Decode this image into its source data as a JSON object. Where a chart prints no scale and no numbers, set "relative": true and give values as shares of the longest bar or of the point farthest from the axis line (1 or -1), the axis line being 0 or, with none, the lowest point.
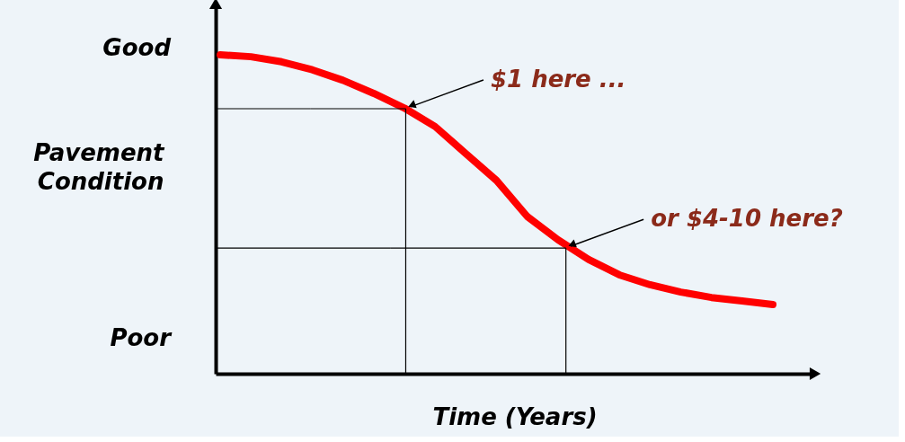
{
  "chart_data": {
    "type": "line",
    "relative": true,
    "xlabel": "Time (Years)",
    "ylabel": "Pavement Condition",
    "line_style": "solid",
    "categories": [
      null,
      null,
      null,
      null,
      null,
      null,
      null,
      null,
      null,
      null,
      null,
      null,
      null,
      null,
      null,
      null,
      null,
      null,
      null
    ],
    "series": [
      {
        "color": "#ff0000",
        "values": [
          1,
          0.994,
          0.978,
          0.953,
          0.92,
          0.879,
          0.833,
          0.775,
          0.69,
          0.606,
          0.493,
          0.42,
          0.358,
          0.31,
          0.279,
          0.256,
          0.239,
          0.228,
          0.217
        ]
      }
    ],
    "annotations": [
      "Good",
      "Poor",
      "$1 here ...",
      "or $4-10 here?"
    ]
  }
}
